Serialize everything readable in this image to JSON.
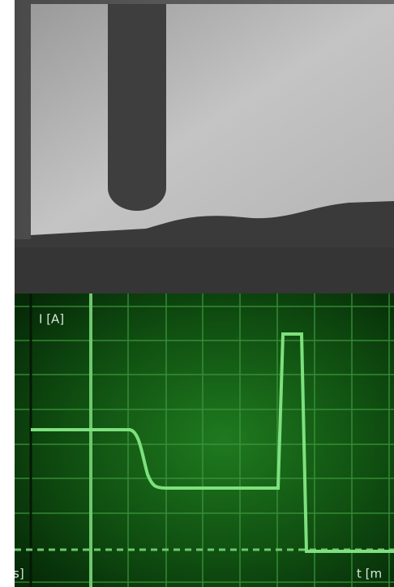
{
  "plot": {
    "y_axis_label": "I [A]",
    "x_axis_label": "t [m",
    "left_edge_label": "s]"
  }
}
